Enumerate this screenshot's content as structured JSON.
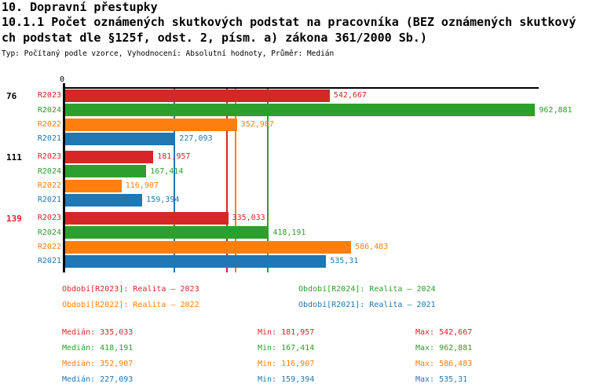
{
  "header": {
    "title": "10. Dopravní přestupky",
    "subtitle_line1": "10.1.1 Počet oznámených skutkových podstat na pracovníka (BEZ oznámených skutkový",
    "subtitle_line2": "ch podstat dle §125f, odst. 2, písm. a) zákona 361/2000 Sb.)",
    "meta": "Typ: Počítaný podle vzorce, Vyhodnocení: Absolutní hodnoty, Průměr: Medián"
  },
  "chart_data": {
    "type": "bar",
    "orientation": "horizontal",
    "title": "10.1.1 Počet oznámených skutkových podstat na pracovníka (BEZ oznámených skutkových podstat dle §125f, odst. 2, písm. a) zákona 361/2000 Sb.)",
    "xlabel": "",
    "ylabel": "",
    "xlim": [
      0,
      975
    ],
    "axis_zero_label": "0",
    "grid": false,
    "legend_position": "bottom",
    "series_order": [
      "R2023",
      "R2024",
      "R2022",
      "R2021"
    ],
    "series_colors": {
      "R2023": "#d62728",
      "R2024": "#2ca02c",
      "R2022": "#ff7f0e",
      "R2021": "#1f77b4"
    },
    "groups": [
      {
        "id": "76",
        "id_color": "#000000",
        "bars": [
          {
            "series": "R2023",
            "value": 542.667,
            "label": "542,667"
          },
          {
            "series": "R2024",
            "value": 962.881,
            "label": "962,881"
          },
          {
            "series": "R2022",
            "value": 352.907,
            "label": "352,907"
          },
          {
            "series": "R2021",
            "value": 227.093,
            "label": "227,093"
          }
        ]
      },
      {
        "id": "111",
        "id_color": "#000000",
        "bars": [
          {
            "series": "R2023",
            "value": 181.957,
            "label": "181,957"
          },
          {
            "series": "R2024",
            "value": 167.414,
            "label": "167,414"
          },
          {
            "series": "R2022",
            "value": 116.907,
            "label": "116,907"
          },
          {
            "series": "R2021",
            "value": 159.394,
            "label": "159,394"
          }
        ]
      },
      {
        "id": "139",
        "id_color": "#d62728",
        "bars": [
          {
            "series": "R2023",
            "value": 335.033,
            "label": "335,033"
          },
          {
            "series": "R2024",
            "value": 418.191,
            "label": "418,191"
          },
          {
            "series": "R2022",
            "value": 586.483,
            "label": "586,483"
          },
          {
            "series": "R2021",
            "value": 535.31,
            "label": "535,31"
          }
        ]
      }
    ],
    "median_lines": {
      "R2023": 335.033,
      "R2024": 418.191,
      "R2022": 352.907,
      "R2021": 227.093
    }
  },
  "legend": {
    "items": [
      {
        "series": "R2023",
        "label": "Období[R2023]: Realita – 2023"
      },
      {
        "series": "R2024",
        "label": "Období[R2024]: Realita – 2024"
      },
      {
        "series": "R2022",
        "label": "Období[R2022]: Realita – 2022"
      },
      {
        "series": "R2021",
        "label": "Období[R2021]: Realita – 2021"
      }
    ]
  },
  "stats": {
    "rows": [
      {
        "series": "R2023",
        "median": "Medián: 335,033",
        "min": "Min: 181,957",
        "max": "Max: 542,667"
      },
      {
        "series": "R2024",
        "median": "Medián: 418,191",
        "min": "Min: 167,414",
        "max": "Max: 962,881"
      },
      {
        "series": "R2022",
        "median": "Medián: 352,907",
        "min": "Min: 116,907",
        "max": "Max: 586,483"
      },
      {
        "series": "R2021",
        "median": "Medián: 227,093",
        "min": "Min: 159,394",
        "max": "Max: 535,31"
      }
    ]
  }
}
